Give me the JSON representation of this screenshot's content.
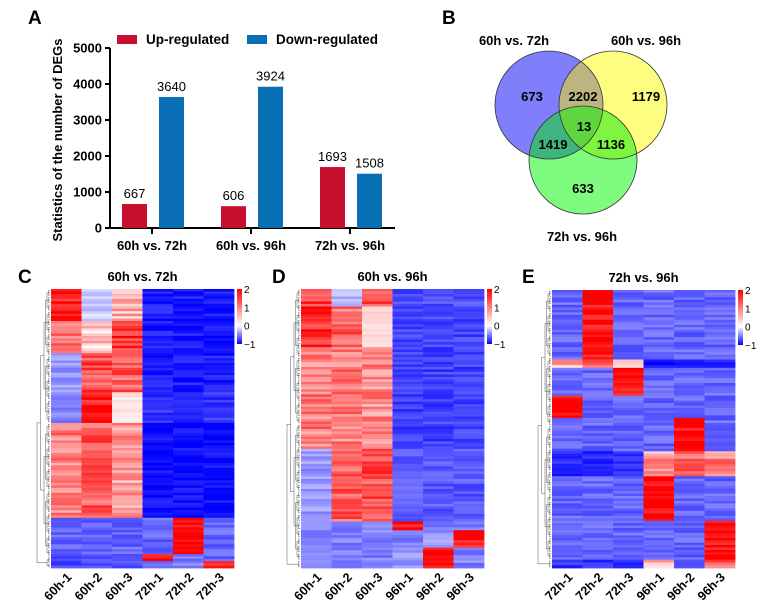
{
  "panels": {
    "A": "A",
    "B": "B",
    "C": "C",
    "D": "D",
    "E": "E"
  },
  "colors": {
    "up": "#c8102e",
    "down": "#0a6eb4",
    "venn_a": "#7f7ffb",
    "venn_b": "#fdfd7f",
    "venn_c": "#7ffb7f",
    "heat_high": "#ff0000",
    "heat_mid": "#ffffff",
    "heat_low": "#0000ff"
  },
  "chart_data": [
    {
      "id": "A",
      "type": "bar",
      "title": "",
      "xlabel": "",
      "ylabel": "Statistics of the number of DEGs",
      "categories": [
        "60h vs. 72h",
        "60h vs. 96h",
        "72h vs. 96h"
      ],
      "series": [
        {
          "name": "Up-regulated",
          "values": [
            667,
            606,
            1693
          ]
        },
        {
          "name": "Down-regulated",
          "values": [
            3640,
            3924,
            1508
          ]
        }
      ],
      "ylim": [
        0,
        5000
      ],
      "yticks": [
        0,
        1000,
        2000,
        3000,
        4000,
        5000
      ],
      "data_labels": true,
      "legend": "top",
      "grid": false
    },
    {
      "id": "B",
      "type": "venn",
      "sets": [
        "60h vs. 72h",
        "60h vs. 96h",
        "72h vs. 96h"
      ],
      "regions": {
        "only_60v72": 673,
        "only_60v96": 1179,
        "only_72v96": 633,
        "60v72_and_60v96": 2202,
        "60v72_and_72v96": 1419,
        "60v96_and_72v96": 1136,
        "all_three": 13
      }
    },
    {
      "id": "C",
      "type": "heatmap",
      "title": "60h vs. 72h",
      "columns": [
        "60h-1",
        "60h-2",
        "60h-3",
        "72h-1",
        "72h-2",
        "72h-3"
      ],
      "colorbar": {
        "ticks": [
          "2",
          "1",
          "0",
          "−1"
        ],
        "range": [
          -1,
          2
        ]
      },
      "blocks": [
        {
          "rows": 0.115,
          "values": [
            1.8,
            -0.2,
            0.6,
            -0.9,
            -0.9,
            -0.9
          ]
        },
        {
          "rows": 0.115,
          "values": [
            1.2,
            0.4,
            1.6,
            -0.9,
            -0.9,
            -0.9
          ]
        },
        {
          "rows": 0.14,
          "values": [
            -0.4,
            1.4,
            1.3,
            -0.9,
            -0.9,
            -0.9
          ]
        },
        {
          "rows": 0.11,
          "values": [
            -0.5,
            1.9,
            0.2,
            -0.8,
            -0.8,
            -0.8
          ]
        },
        {
          "rows": 0.34,
          "values": [
            1.0,
            1.3,
            0.8,
            -0.95,
            -0.95,
            -0.95
          ]
        },
        {
          "rows": 0.13,
          "values": [
            -0.6,
            -0.6,
            -0.6,
            -0.6,
            2.0,
            -0.6
          ]
        },
        {
          "rows": 0.025,
          "values": [
            -0.7,
            -0.7,
            -0.7,
            1.8,
            -0.5,
            -0.6
          ]
        },
        {
          "rows": 0.025,
          "values": [
            -0.7,
            -0.7,
            -0.7,
            -0.6,
            -0.5,
            1.9
          ]
        }
      ]
    },
    {
      "id": "D",
      "type": "heatmap",
      "title": "60h vs. 96h",
      "columns": [
        "60h-1",
        "60h-2",
        "60h-3",
        "96h-1",
        "96h-2",
        "96h-3"
      ],
      "colorbar": {
        "ticks": [
          "2",
          "1",
          "0",
          "−1"
        ],
        "range": [
          -1,
          2
        ]
      },
      "blocks": [
        {
          "rows": 0.06,
          "values": [
            1.5,
            -0.3,
            1.4,
            -0.7,
            -0.7,
            -0.7
          ]
        },
        {
          "rows": 0.14,
          "values": [
            1.6,
            1.2,
            0.3,
            -0.75,
            -0.75,
            -0.75
          ]
        },
        {
          "rows": 0.35,
          "values": [
            1.0,
            1.0,
            0.9,
            -0.75,
            -0.75,
            -0.75
          ]
        },
        {
          "rows": 0.25,
          "values": [
            -0.4,
            1.3,
            1.4,
            -0.65,
            -0.65,
            -0.65
          ]
        },
        {
          "rows": 0.03,
          "values": [
            -0.5,
            -0.5,
            -0.5,
            2.0,
            -0.5,
            -0.5
          ]
        },
        {
          "rows": 0.06,
          "values": [
            -0.5,
            -0.5,
            -0.5,
            -0.5,
            -0.4,
            1.9
          ]
        },
        {
          "rows": 0.07,
          "values": [
            -0.5,
            -0.5,
            -0.5,
            -0.4,
            2.0,
            -0.5
          ]
        }
      ]
    },
    {
      "id": "E",
      "type": "heatmap",
      "title": "72h vs. 96h",
      "columns": [
        "72h-1",
        "72h-2",
        "72h-3",
        "96h-1",
        "96h-2",
        "96h-3"
      ],
      "colorbar": {
        "ticks": [
          "2",
          "1",
          "0",
          "−1"
        ],
        "range": [
          -1,
          2
        ]
      },
      "blocks": [
        {
          "rows": 0.25,
          "values": [
            -0.6,
            2.0,
            -0.6,
            -0.6,
            -0.6,
            -0.6
          ]
        },
        {
          "rows": 0.03,
          "values": [
            0.6,
            1.3,
            0.5,
            -0.9,
            -0.9,
            -0.9
          ]
        },
        {
          "rows": 0.1,
          "values": [
            -0.6,
            -0.6,
            2.0,
            -0.6,
            -0.6,
            -0.6
          ]
        },
        {
          "rows": 0.08,
          "values": [
            2.0,
            -0.6,
            -0.6,
            -0.6,
            -0.6,
            -0.6
          ]
        },
        {
          "rows": 0.12,
          "values": [
            -0.6,
            -0.6,
            -0.6,
            -0.6,
            2.0,
            -0.6
          ]
        },
        {
          "rows": 0.09,
          "values": [
            -0.85,
            -0.85,
            -0.85,
            0.8,
            1.2,
            1.0
          ]
        },
        {
          "rows": 0.16,
          "values": [
            -0.6,
            -0.6,
            -0.6,
            2.0,
            -0.6,
            -0.6
          ]
        },
        {
          "rows": 0.14,
          "values": [
            -0.6,
            -0.6,
            -0.6,
            -0.6,
            -0.6,
            2.0
          ]
        },
        {
          "rows": 0.03,
          "values": [
            -0.8,
            -0.8,
            -0.8,
            0.6,
            -0.8,
            1.2
          ]
        }
      ]
    }
  ]
}
